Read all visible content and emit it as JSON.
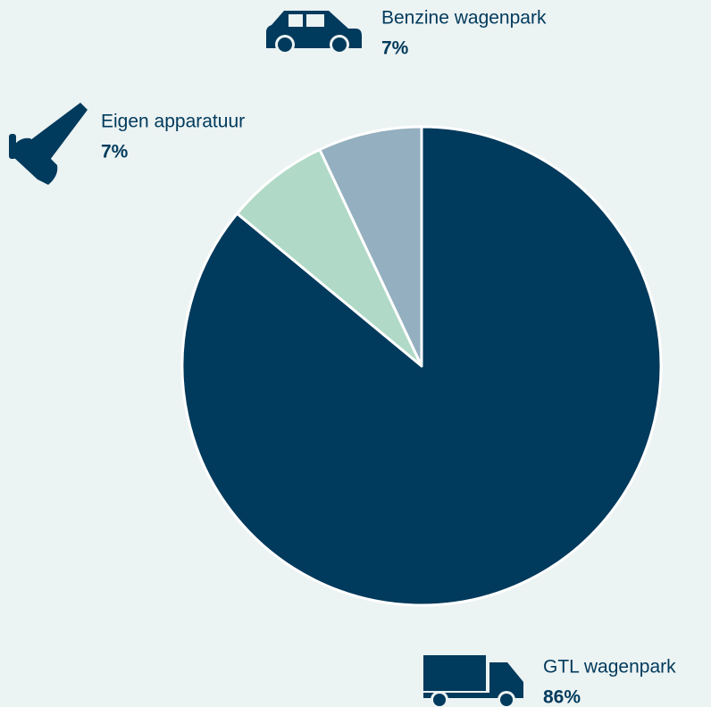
{
  "chart_data": {
    "type": "pie",
    "categories": [
      "GTL wagenpark",
      "Eigen apparatuur",
      "Benzine wagenpark"
    ],
    "values": [
      86,
      7,
      7
    ],
    "value_labels": [
      "86%",
      "7%",
      "7%"
    ],
    "colors": [
      "#003a5c",
      "#b0d9c7",
      "#94afbf"
    ]
  }
}
